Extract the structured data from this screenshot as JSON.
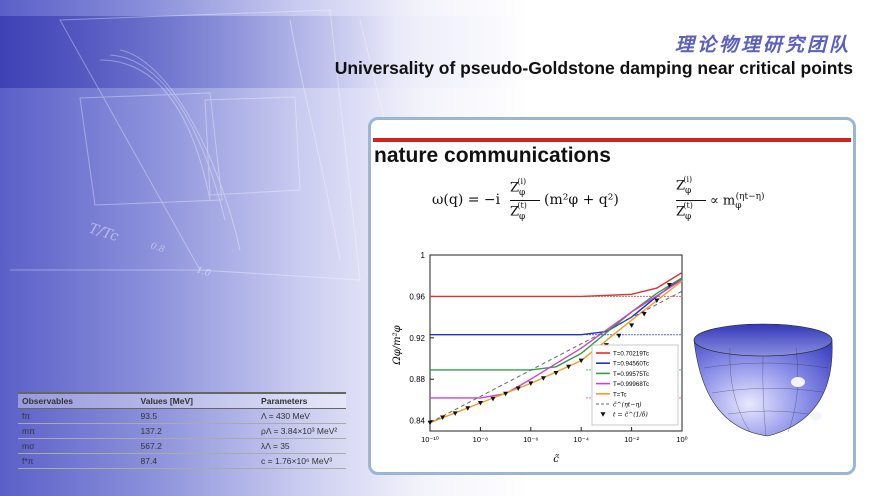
{
  "header": {
    "brand": "理论物理研究团队",
    "title": "Universality of pseudo-Goldstone damping near critical points"
  },
  "panel": {
    "journal": "nature communications"
  },
  "formulas": {
    "omega_lhs": "ω(q) = −i",
    "omega_rhs": "(m²φ + q²)",
    "proportional": "∝ m",
    "exponent": "(ηt−η)",
    "z_num": "Z",
    "z_i": "(i)",
    "z_t": "(t)",
    "phi": "φ"
  },
  "background_plot": {
    "xlabel": "T/Tc",
    "tick_08": "0.8",
    "tick_10": "1.0"
  },
  "table": {
    "headers": [
      "Observables",
      "Values [MeV]",
      "Parameters"
    ],
    "rows": [
      [
        "fπ",
        "93.5",
        "Λ = 430 MeV"
      ],
      [
        "mπ",
        "137.2",
        "ρΛ = 3.84×10³ MeV²"
      ],
      [
        "mσ",
        "567.2",
        "λΛ = 35"
      ],
      [
        "f*π",
        "87.4",
        "c = 1.76×10⁶ MeV³"
      ]
    ]
  },
  "colors": {
    "red": "#e03030",
    "blue": "#2030d0",
    "green": "#30a040",
    "magenta": "#d040d0",
    "orange": "#f0a020",
    "bar": "#d42020",
    "border": "#9bb5d6"
  },
  "chart_data": {
    "type": "line",
    "xlabel": "c̃",
    "ylabel": "Ωφ/m²φ",
    "xscale": "log",
    "xlim": [
      1e-10,
      1
    ],
    "ylim": [
      0.83,
      1.0
    ],
    "yticks": [
      "1",
      "0.96",
      "0.92",
      "0.88",
      "0.84"
    ],
    "xticks": [
      "10⁻¹⁰",
      "10⁻⁸",
      "10⁻⁶",
      "10⁻⁴",
      "10⁻²",
      "10⁰"
    ],
    "xtick_exps": [
      -10,
      -8,
      -6,
      -4,
      -2,
      0
    ],
    "ytick_vals": [
      1,
      0.96,
      0.92,
      0.88,
      0.84
    ],
    "series": [
      {
        "name": "T=0.70219Tc",
        "color": "#e03030",
        "plateau": 0.96,
        "x": [
          -10,
          -4,
          -2,
          -1,
          0
        ],
        "y": [
          0.96,
          0.96,
          0.962,
          0.968,
          0.983
        ]
      },
      {
        "name": "T=0.94560Tc",
        "color": "#2030d0",
        "plateau": 0.923,
        "x": [
          -10,
          -4,
          -3,
          -2,
          -1,
          0
        ],
        "y": [
          0.923,
          0.923,
          0.926,
          0.94,
          0.96,
          0.978
        ]
      },
      {
        "name": "T=0.99575Tc",
        "color": "#30a040",
        "plateau": 0.889,
        "x": [
          -10,
          -6,
          -5,
          -4,
          -3,
          -2,
          -1,
          0
        ],
        "y": [
          0.889,
          0.889,
          0.892,
          0.905,
          0.925,
          0.945,
          0.963,
          0.978
        ]
      },
      {
        "name": "T=0.99968Tc",
        "color": "#d040d0",
        "plateau": 0.862,
        "x": [
          -10,
          -8,
          -7,
          -6,
          -5,
          -4,
          -2,
          0
        ],
        "y": [
          0.862,
          0.862,
          0.866,
          0.88,
          0.895,
          0.91,
          0.945,
          0.976
        ]
      },
      {
        "name": "T=Tc",
        "color": "#f0a020",
        "plateau": null,
        "x": [
          -10,
          -8,
          -6,
          -4,
          -2,
          0
        ],
        "y": [
          0.838,
          0.857,
          0.876,
          0.898,
          0.937,
          0.975
        ]
      }
    ],
    "fit_label": "c̃^(ηt−η)",
    "scaling_label": "t = c̃^(1/δ)",
    "scaling_points": {
      "x": [
        -10,
        -9.5,
        -9,
        -8.5,
        -8,
        -7.5,
        -7,
        -6.5,
        -6,
        -5.5,
        -5,
        -4.5,
        -4,
        -3.5,
        -3,
        -2.5,
        -2,
        -1.5,
        -1,
        -0.5
      ],
      "y": [
        0.838,
        0.843,
        0.847,
        0.852,
        0.857,
        0.861,
        0.866,
        0.871,
        0.876,
        0.881,
        0.886,
        0.892,
        0.898,
        0.905,
        0.913,
        0.922,
        0.932,
        0.943,
        0.956,
        0.971
      ]
    }
  }
}
